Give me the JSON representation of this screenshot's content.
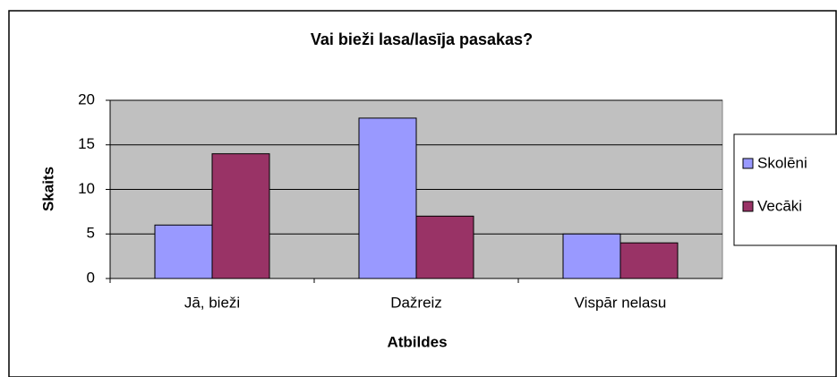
{
  "chart_data": {
    "type": "bar",
    "title": "Vai bieži lasa/lasīja pasakas?",
    "x_label": "Atbildes",
    "y_label": "Skaits",
    "categories": [
      "Jā, bieži",
      "Dažreiz",
      "Vispār nelasu"
    ],
    "series": [
      {
        "name": "Skolēni",
        "color": "#9999ff",
        "values": [
          6,
          18,
          5
        ]
      },
      {
        "name": "Vecāki",
        "color": "#993366",
        "values": [
          14,
          7,
          4
        ]
      }
    ],
    "ylim": [
      0,
      20
    ],
    "yticks": [
      0,
      5,
      10,
      15,
      20
    ],
    "grid": true,
    "legend": "right"
  }
}
